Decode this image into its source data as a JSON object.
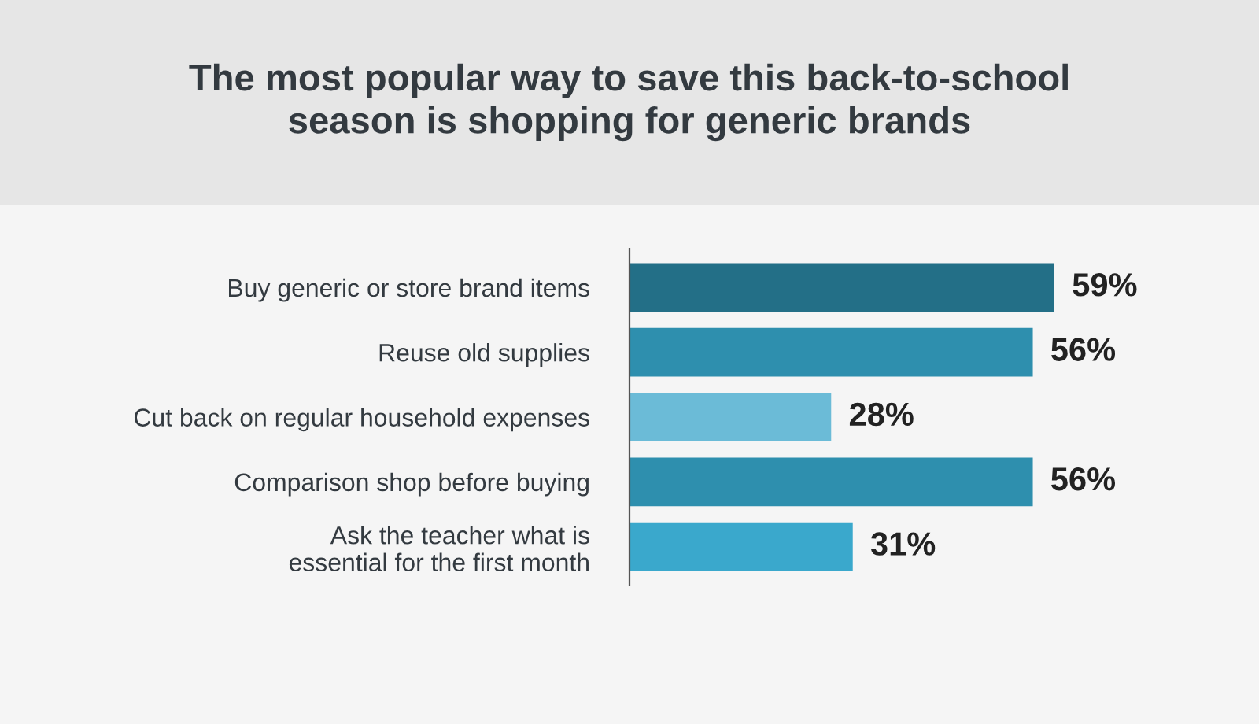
{
  "chart_data": {
    "type": "bar",
    "orientation": "horizontal",
    "title": "The most popular way to save this back-to-school\nseason is shopping for generic brands",
    "categories": [
      "Buy generic or store brand items",
      "Reuse old supplies",
      "Cut back on regular household expenses",
      "Comparison shop before buying",
      "Ask the teacher what is\nessential for the first month"
    ],
    "values": [
      59,
      56,
      28,
      56,
      31
    ],
    "colors": [
      "#236f87",
      "#2e8fae",
      "#6bbbd7",
      "#2e8fae",
      "#3aa8cc"
    ],
    "value_labels": [
      "59%",
      "56%",
      "28%",
      "56%",
      "31%"
    ],
    "grid": false,
    "legend": false
  }
}
